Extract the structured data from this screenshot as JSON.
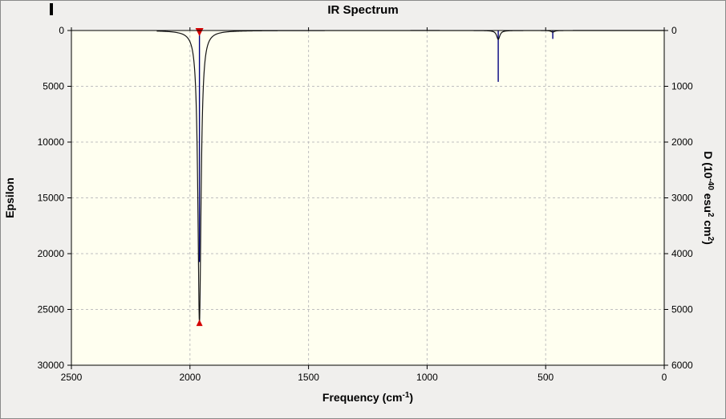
{
  "window": {
    "background": "#f0efed",
    "border_color": "#8a8a8a"
  },
  "chart_data": {
    "type": "line+stick",
    "title": "IR Spectrum",
    "xlabel_parts": [
      {
        "t": "Frequency (cm"
      },
      {
        "t": "-1",
        "sup": true
      },
      {
        "t": ")"
      }
    ],
    "ylabel_right_parts": [
      {
        "t": "D (10"
      },
      {
        "t": "-40",
        "sup": true
      },
      {
        "t": " esu"
      },
      {
        "t": "2",
        "sup": true
      },
      {
        "t": " cm"
      },
      {
        "t": "2",
        "sup": true
      },
      {
        "t": ")"
      }
    ],
    "x_axis": {
      "min": 0,
      "max": 2500,
      "reversed": true,
      "ticks": [
        2500,
        2000,
        1500,
        1000,
        500,
        0
      ]
    },
    "y_left": {
      "label": "Epsilon",
      "min": 0,
      "max": 30000,
      "inverted": true,
      "ticks": [
        0,
        5000,
        10000,
        15000,
        20000,
        25000,
        30000
      ]
    },
    "y_right": {
      "min": 0,
      "max": 6000,
      "inverted": true,
      "ticks": [
        0,
        1000,
        2000,
        3000,
        4000,
        5000,
        6000
      ]
    },
    "grid": {
      "on": true,
      "style": "dashed",
      "color": "#bfbfbf"
    },
    "plot_bg": "#fffff0",
    "curve_color": "#141414",
    "stick_color": "#00007f",
    "marker_color": "#d40000",
    "curve_range": [
      2140,
      0
    ],
    "broadening_hwhm": 8,
    "peaks": [
      {
        "frequency": 1960,
        "epsilon": 26200,
        "D": 4150,
        "selected": true
      },
      {
        "frequency": 700,
        "epsilon": 800,
        "D": 920,
        "selected": false
      },
      {
        "frequency": 470,
        "epsilon": 150,
        "D": 150,
        "selected": false
      }
    ]
  }
}
